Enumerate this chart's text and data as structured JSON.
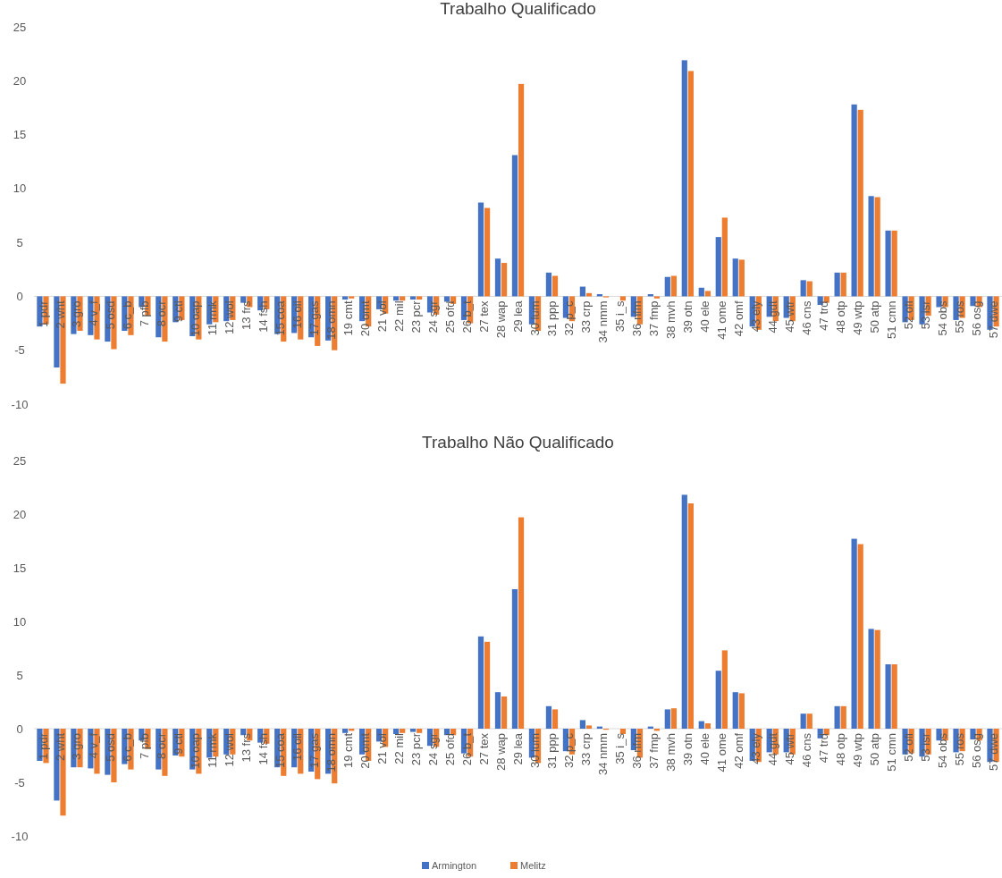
{
  "chart_data": [
    {
      "type": "bar",
      "title": "Trabalho Qualificado",
      "categories": [
        "1 pdr",
        "2 wht",
        "3 gro",
        "4 v_f",
        "5 osd",
        "6 c_b",
        "7 pfb",
        "8 ocr",
        "9 ctl",
        "10 oap",
        "11 rmk",
        "12 wol",
        "13 frs",
        "14 fsh",
        "15 coa",
        "16 oil",
        "17 gas",
        "18 omn",
        "19 cmt",
        "20 omt",
        "21 vol",
        "22 mil",
        "23 pcr",
        "24 sgr",
        "25 ofd",
        "26 b_t",
        "27 tex",
        "28 wap",
        "29 lea",
        "30 lum",
        "31 ppp",
        "32 p_c",
        "33 crp",
        "34 nmm",
        "35 i_s",
        "36 nfm",
        "37 fmp",
        "38 mvh",
        "39 otn",
        "40 ele",
        "41 ome",
        "42 omf",
        "43 ely",
        "44 gdt",
        "45 wtr",
        "46 cns",
        "47 trd",
        "48 otp",
        "49 wtp",
        "50 atp",
        "51 cmn",
        "52 ofi",
        "53 isr",
        "54 obs",
        "55 ros",
        "56 osg",
        "57 dwe"
      ],
      "series": [
        {
          "color": "#4472c4",
          "values": [
            -2.8,
            -6.6,
            -3.5,
            -3.6,
            -4.2,
            -3.2,
            -1.0,
            -3.8,
            -2.4,
            -3.7,
            -2.6,
            -2.3,
            -0.6,
            -1.3,
            -3.5,
            -3.4,
            -3.8,
            -4.1,
            -0.3,
            -2.3,
            -1.2,
            -0.4,
            -0.3,
            -1.5,
            -0.5,
            -2.2,
            8.7,
            3.5,
            13.1,
            -2.6,
            2.2,
            -2.0,
            0.9,
            0.2,
            0.0,
            -1.9,
            0.2,
            1.8,
            21.9,
            0.8,
            5.5,
            3.5,
            -2.8,
            -1.9,
            -2.0,
            1.5,
            -0.8,
            2.2,
            17.8,
            9.3,
            6.1,
            -2.4,
            -2.6,
            -1.0,
            -2.2,
            -0.9,
            -3.1
          ]
        },
        {
          "color": "#ed7d31",
          "values": [
            -2.6,
            -8.1,
            -3.2,
            -4.0,
            -4.9,
            -3.6,
            -1.8,
            -4.2,
            -2.2,
            -4.0,
            -2.4,
            -2.2,
            -1.0,
            -1.2,
            -4.2,
            -4.0,
            -4.6,
            -5.0,
            -0.2,
            -2.8,
            -1.6,
            -0.4,
            -0.3,
            -1.7,
            -0.7,
            -2.5,
            8.2,
            3.1,
            19.7,
            -3.2,
            1.9,
            -2.3,
            0.3,
            -0.1,
            -0.4,
            -2.6,
            -0.2,
            1.9,
            20.9,
            0.5,
            7.3,
            3.4,
            -3.1,
            -2.3,
            -2.3,
            1.4,
            -0.6,
            2.2,
            17.3,
            9.2,
            6.1,
            -2.2,
            -1.8,
            -1.0,
            -2.0,
            -1.0,
            -2.8
          ]
        }
      ],
      "ylim": [
        -10,
        25
      ],
      "yticks": [
        -10,
        -5,
        0,
        5,
        10,
        15,
        20,
        25
      ],
      "grid": false
    },
    {
      "type": "bar",
      "title": "Trabalho Não Qualificado",
      "categories": [
        "1 pdr",
        "2 wht",
        "3 gro",
        "4 v_f",
        "5 osd",
        "6 c_b",
        "7 pfb",
        "8 ocr",
        "9 ctl",
        "10 oap",
        "11 rmk",
        "12 wol",
        "13 frs",
        "14 fsh",
        "15 coa",
        "16 oil",
        "17 gas",
        "18 omn",
        "19 cmt",
        "20 omt",
        "21 vol",
        "22 mil",
        "23 pcr",
        "24 sgr",
        "25 ofd",
        "26 b_t",
        "27 tex",
        "28 wap",
        "29 lea",
        "30 lum",
        "31 ppp",
        "32 p_c",
        "33 crp",
        "34 nmm",
        "35 i_s",
        "36 nfm",
        "37 fmp",
        "38 mvh",
        "39 otn",
        "40 ele",
        "41 ome",
        "42 omf",
        "43 ely",
        "44 gdt",
        "45 wtr",
        "46 cns",
        "47 trd",
        "48 otp",
        "49 wtp",
        "50 atp",
        "51 cmn",
        "52 ofi",
        "53 isr",
        "54 obs",
        "55 ros",
        "56 osg",
        "57 dwe"
      ],
      "series": [
        {
          "name": "Armington",
          "color": "#4472c4",
          "values": [
            -3.0,
            -6.7,
            -3.6,
            -3.7,
            -4.3,
            -3.3,
            -1.1,
            -3.8,
            -2.5,
            -3.8,
            -2.7,
            -2.4,
            -0.6,
            -1.3,
            -3.6,
            -3.6,
            -4.0,
            -4.2,
            -0.4,
            -2.4,
            -1.2,
            -0.5,
            -0.3,
            -1.6,
            -0.6,
            -2.3,
            8.6,
            3.4,
            13.0,
            -2.7,
            2.1,
            -2.1,
            0.8,
            0.2,
            0.0,
            -2.0,
            0.2,
            1.8,
            21.8,
            0.7,
            5.4,
            3.4,
            -3.0,
            -2.2,
            -2.2,
            1.4,
            -0.9,
            2.1,
            17.7,
            9.3,
            6.0,
            -2.4,
            -2.6,
            -1.1,
            -2.2,
            -1.0,
            -3.1
          ]
        },
        {
          "name": "Melitz",
          "color": "#ed7d31",
          "values": [
            -3.2,
            -8.1,
            -3.6,
            -4.2,
            -5.0,
            -3.8,
            -1.9,
            -4.4,
            -2.6,
            -4.2,
            -2.6,
            -2.4,
            -1.1,
            -1.4,
            -4.4,
            -4.2,
            -4.7,
            -5.1,
            -0.2,
            -3.0,
            -1.7,
            -0.4,
            -0.4,
            -1.7,
            -0.6,
            -2.6,
            8.1,
            3.0,
            19.7,
            -3.2,
            1.8,
            -2.4,
            0.3,
            -0.1,
            -0.5,
            -2.7,
            -0.2,
            1.9,
            21.0,
            0.5,
            7.3,
            3.3,
            -3.1,
            -2.4,
            -2.4,
            1.4,
            -0.6,
            2.1,
            17.2,
            9.2,
            6.0,
            -2.3,
            -2.4,
            -1.1,
            -2.1,
            -1.1,
            -3.1
          ]
        }
      ],
      "ylim": [
        -10,
        25
      ],
      "yticks": [
        -10,
        -5,
        0,
        5,
        10,
        15,
        20,
        25
      ],
      "grid": false,
      "legend": "bottom"
    }
  ]
}
